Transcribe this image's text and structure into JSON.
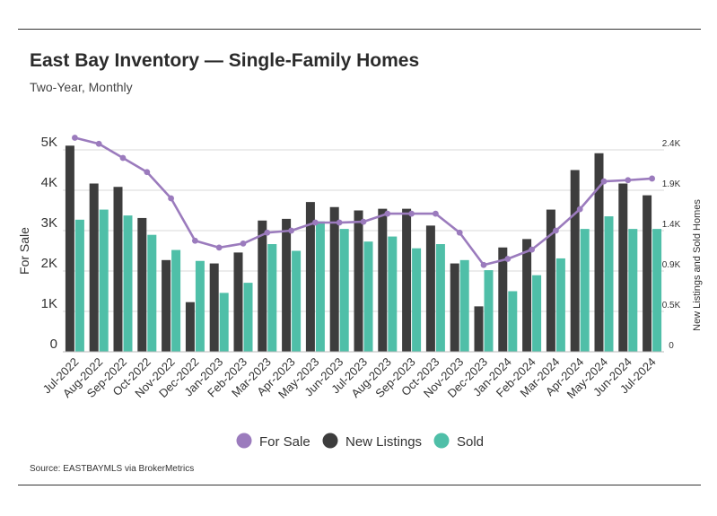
{
  "header": {
    "title": "East Bay Inventory — Single-Family Homes",
    "subtitle": "Two-Year, Monthly"
  },
  "footer": {
    "source": "Source:  EASTBAYMLS via BrokerMetrics"
  },
  "colors": {
    "for_sale": "#9b7bbd",
    "new_listings": "#3d3d3d",
    "sold": "#4fbfa8",
    "grid": "#d9d9d9"
  },
  "chart_data": {
    "type": "bar+line",
    "title": "East Bay Inventory — Single-Family Homes",
    "subtitle": "Two-Year, Monthly",
    "categories": [
      "Jul-2022",
      "Aug-2022",
      "Sep-2022",
      "Oct-2022",
      "Nov-2022",
      "Dec-2022",
      "Jan-2023",
      "Feb-2023",
      "Mar-2023",
      "Apr-2023",
      "May-2023",
      "Jun-2023",
      "Jul-2023",
      "Aug-2023",
      "Sep-2023",
      "Oct-2023",
      "Nov-2023",
      "Dec-2023",
      "Jan-2024",
      "Feb-2024",
      "Mar-2024",
      "Apr-2024",
      "May-2024",
      "Jun-2024",
      "Jul-2024"
    ],
    "left_axis": {
      "label": "For Sale",
      "range": [
        0,
        5000
      ],
      "ticks": [
        "0",
        "1K",
        "2K",
        "3K",
        "4K",
        "5K"
      ]
    },
    "right_axis": {
      "label": "New Listings and Sold Homes",
      "range": [
        0,
        2400
      ],
      "ticks": [
        "0",
        "0.5K",
        "0.9K",
        "1.4K",
        "1.9K",
        "2.4K"
      ]
    },
    "series": [
      {
        "name": "For Sale",
        "kind": "line",
        "axis": "left",
        "values": [
          5300,
          5150,
          4800,
          4450,
          3800,
          2750,
          2580,
          2680,
          2950,
          3000,
          3200,
          3200,
          3220,
          3420,
          3420,
          3420,
          2950,
          2150,
          2300,
          2530,
          3000,
          3530,
          4220,
          4250,
          4290
        ]
      },
      {
        "name": "New Listings",
        "kind": "bar",
        "axis": "right",
        "values": [
          2450,
          2000,
          1960,
          1590,
          1090,
          590,
          1050,
          1180,
          1560,
          1580,
          1780,
          1720,
          1680,
          1700,
          1700,
          1500,
          1050,
          540,
          1240,
          1340,
          1690,
          2160,
          2360,
          2000,
          1860
        ]
      },
      {
        "name": "Sold",
        "kind": "bar",
        "axis": "right",
        "values": [
          1570,
          1690,
          1620,
          1390,
          1210,
          1080,
          700,
          820,
          1280,
          1200,
          1550,
          1460,
          1310,
          1370,
          1230,
          1280,
          1090,
          970,
          720,
          910,
          1110,
          1460,
          1610,
          1460,
          1460
        ]
      }
    ],
    "legend": [
      "For Sale",
      "New Listings",
      "Sold"
    ],
    "legend_position": "bottom-center",
    "grid": true
  }
}
